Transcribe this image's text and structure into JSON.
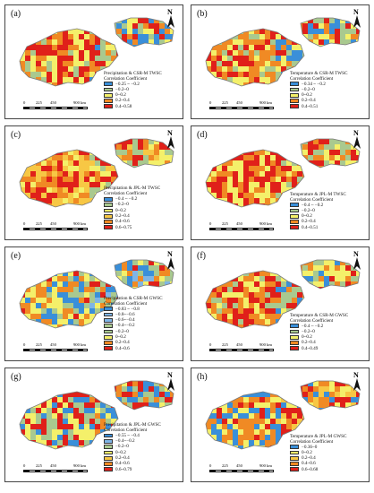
{
  "colors": {
    "neg_strong": "#3a8fd9",
    "neg_mid": "#7fb5e6",
    "neg_light": "#a9c98f",
    "pos_low": "#f4f06a",
    "pos_mid": "#f7c744",
    "pos_high": "#f08a24",
    "pos_max": "#e0201a",
    "outline": "#7a7a7a"
  },
  "scale": {
    "ticks": [
      "0",
      "225",
      "450",
      "900 km"
    ]
  },
  "north_label": "N",
  "panels": [
    {
      "label": "(a)",
      "legend_title": [
        "Precipitation & CSR-M TWSC",
        "Correlation Coefficient"
      ],
      "legend": [
        "−0.25 ~ −0.2",
        "−0.2~0",
        "0~0.2",
        "0.2~0.4",
        "0.4~0.58"
      ],
      "legend_colors": [
        "neg_strong",
        "neg_light",
        "pos_low",
        "pos_high",
        "pos_max"
      ]
    },
    {
      "label": "(b)",
      "legend_title": [
        "Temperature & CSR-M TWSC",
        "Correlation Coefficient"
      ],
      "legend": [
        "−0.34 ~ −0.2",
        "−0.2~0",
        "0~0.2",
        "0.2~0.4",
        "0.4~0.51"
      ],
      "legend_colors": [
        "neg_strong",
        "neg_light",
        "pos_low",
        "pos_high",
        "pos_max"
      ]
    },
    {
      "label": "(c)",
      "legend_title": [
        "Precipitation & JPL-M TWSC",
        "Correlation Coefficient"
      ],
      "legend": [
        "−0.4 ~ −0.2",
        "−0.2~0",
        "0~0.2",
        "0.2~0.4",
        "0.4~0.6",
        "0.6~0.75"
      ],
      "legend_colors": [
        "neg_strong",
        "neg_light",
        "pos_low",
        "pos_mid",
        "pos_high",
        "pos_max"
      ]
    },
    {
      "label": "(d)",
      "legend_title": [
        "Temperature & JPL-M TWSC",
        "Correlation Coefficient"
      ],
      "legend": [
        "−0.4 ~ −0.2",
        "−0.2~0",
        "0~0.2",
        "0.2~0.4",
        "0.4~0.51"
      ],
      "legend_colors": [
        "neg_strong",
        "neg_light",
        "pos_low",
        "pos_high",
        "pos_max"
      ]
    },
    {
      "label": "(e)",
      "legend_title": [
        "Precipitation & CSR-M GWSC",
        "Correlation Coefficient"
      ],
      "legend": [
        "−0.83 ~ −0.8",
        "−0.8~−0.6",
        "−0.6~−0.4",
        "−0.4~−0.2",
        "−0.2~0",
        "0~0.2",
        "0.2~0.4",
        "0.4~0.6"
      ],
      "legend_colors": [
        "neg_strong",
        "neg_mid",
        "neg_mid",
        "neg_light",
        "neg_light",
        "pos_low",
        "pos_high",
        "pos_max"
      ]
    },
    {
      "label": "(f)",
      "legend_title": [
        "Temperature & CSR-M GWSC",
        "Correlation Coefficient"
      ],
      "legend": [
        "−0.4 ~ −0.2",
        "−0.2~0",
        "0~0.2",
        "0.2~0.4",
        "0.4~0.49"
      ],
      "legend_colors": [
        "neg_strong",
        "neg_light",
        "pos_low",
        "pos_high",
        "pos_max"
      ]
    },
    {
      "label": "(g)",
      "legend_title": [
        "Precipitation & JPL-M GWSC",
        "Correlation Coefficient"
      ],
      "legend": [
        "−0.55 ~ −0.4",
        "−0.4~−0.2",
        "−0.2~0",
        "0~0.2",
        "0.2~0.4",
        "0.4~0.6",
        "0.6~0.79"
      ],
      "legend_colors": [
        "neg_strong",
        "neg_mid",
        "neg_light",
        "pos_low",
        "pos_mid",
        "pos_high",
        "pos_max"
      ]
    },
    {
      "label": "(h)",
      "legend_title": [
        "Temperature & JPL-M GWSC",
        "Correlation Coefficient"
      ],
      "legend": [
        "−0.36~0",
        "0~0.2",
        "0.2~0.4",
        "0.4~0.6",
        "0.6~0.68"
      ],
      "legend_colors": [
        "neg_strong",
        "pos_low",
        "pos_mid",
        "pos_high",
        "pos_max"
      ]
    }
  ]
}
